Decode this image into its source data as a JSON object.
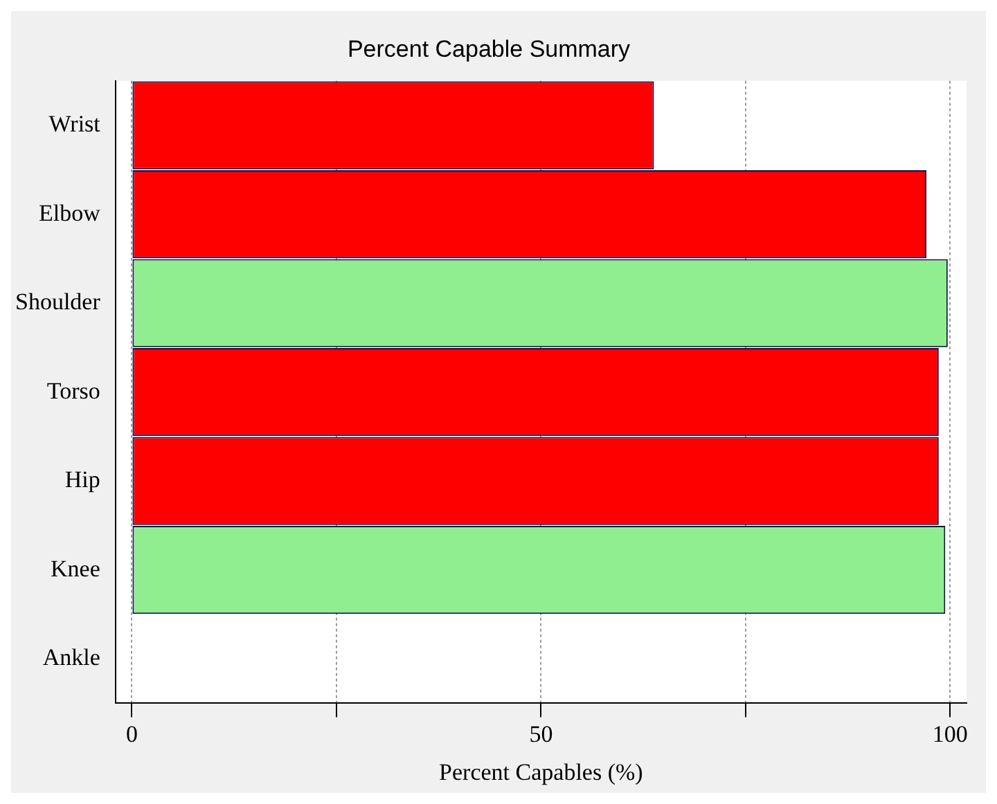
{
  "chart_data": {
    "type": "bar",
    "orientation": "horizontal",
    "title": "Percent Capable Summary",
    "xlabel": "Percent Capables (%)",
    "categories": [
      "Wrist",
      "Elbow",
      "Shoulder",
      "Torso",
      "Hip",
      "Knee",
      "Ankle"
    ],
    "values": [
      63.8,
      97.1,
      99.7,
      98.6,
      98.6,
      99.4,
      0
    ],
    "colors": [
      "#ff0000",
      "#ff0000",
      "#90ee90",
      "#ff0000",
      "#ff0000",
      "#90ee90",
      "#ff0000"
    ],
    "xlim": [
      -2,
      102
    ],
    "xticks": [
      0,
      {
        "value": 25,
        "label": null
      },
      50,
      {
        "value": 75,
        "label": null
      },
      100
    ],
    "grid": "x",
    "legend": false
  }
}
